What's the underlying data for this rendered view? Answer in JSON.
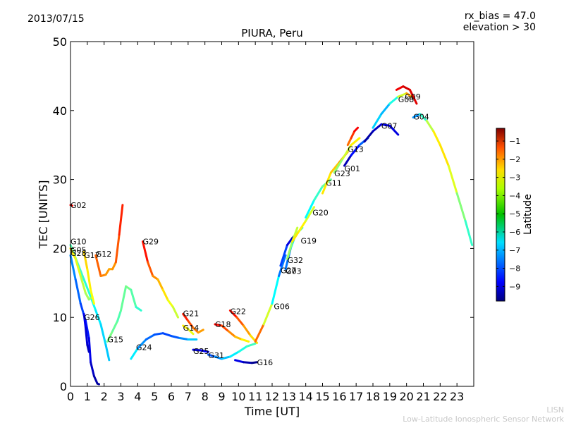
{
  "header": {
    "date": "2013/07/15",
    "rx_bias": "rx_bias = 47.0",
    "elevation": "elevation > 30",
    "title": "PIURA, Peru"
  },
  "credits": {
    "line1": "LISN",
    "line2": "Low-Latitude Ionospheric Sensor Network"
  },
  "chart_data": {
    "type": "scatter",
    "title": "PIURA, Peru",
    "xlabel": "Time [UT]",
    "ylabel": "TEC [UNITS]",
    "xlim": [
      0,
      24
    ],
    "ylim": [
      0,
      50
    ],
    "xticks": [
      0,
      1,
      2,
      3,
      4,
      5,
      6,
      7,
      8,
      9,
      10,
      11,
      12,
      13,
      14,
      15,
      16,
      17,
      18,
      19,
      20,
      21,
      22,
      23
    ],
    "yticks": [
      0,
      10,
      20,
      30,
      40,
      50
    ],
    "grid": false,
    "colorbar": {
      "label": "Latitude",
      "range": [
        -9.8,
        -0.3
      ],
      "ticks": [
        -1,
        -2,
        -3,
        -4,
        -5,
        -6,
        -7,
        -8,
        -9
      ],
      "colormap": "jet"
    },
    "series": [
      {
        "name": "G02",
        "label_at": [
          0.0,
          26.3
        ],
        "points": [
          [
            0.0,
            26.3,
            -1.5
          ],
          [
            0.1,
            26.2,
            -1.6
          ]
        ]
      },
      {
        "name": "G10",
        "label_at": [
          0.0,
          21.0
        ],
        "points": [
          [
            0.0,
            20.5,
            -5.5
          ],
          [
            0.4,
            18.0,
            -5.6
          ],
          [
            0.8,
            15.5,
            -5.8
          ],
          [
            1.2,
            13.0,
            -6.0
          ],
          [
            1.5,
            11.0,
            -6.3
          ],
          [
            1.8,
            9.0,
            -6.5
          ],
          [
            2.1,
            6.0,
            -6.7
          ],
          [
            2.3,
            3.8,
            -6.8
          ]
        ]
      },
      {
        "name": "G05",
        "label_at": [
          0.0,
          19.8
        ],
        "points": [
          [
            0.0,
            20.0,
            -3.6
          ],
          [
            0.3,
            18.5,
            -3.9
          ],
          [
            0.6,
            16.0,
            -4.3
          ],
          [
            0.9,
            13.5,
            -4.6
          ],
          [
            1.1,
            12.6,
            -4.8
          ],
          [
            1.3,
            13.0,
            -5.0
          ]
        ]
      },
      {
        "name": "G28",
        "label_at": [
          0.0,
          19.3
        ],
        "points": [
          [
            0.0,
            19.0,
            -7.2
          ],
          [
            0.3,
            15.5,
            -7.5
          ],
          [
            0.6,
            12.0,
            -7.8
          ],
          [
            0.9,
            9.5,
            -8.2
          ],
          [
            1.1,
            7.0,
            -8.6
          ],
          [
            1.2,
            3.5,
            -9.0
          ],
          [
            1.4,
            1.5,
            -9.3
          ],
          [
            1.6,
            0.4,
            -9.5
          ],
          [
            1.7,
            0.3,
            -9.6
          ]
        ]
      },
      {
        "name": "G17",
        "label_at": [
          0.8,
          19.0
        ],
        "points": [
          [
            0.8,
            19.5,
            -3.4
          ],
          [
            1.0,
            17.0,
            -3.6
          ],
          [
            1.2,
            14.0,
            -3.8
          ],
          [
            1.4,
            12.0,
            -4.0
          ]
        ]
      },
      {
        "name": "G12",
        "label_at": [
          1.5,
          19.2
        ],
        "points": [
          [
            1.5,
            19.0,
            -2.2
          ],
          [
            1.8,
            16.0,
            -2.6
          ],
          [
            2.1,
            16.2,
            -2.8
          ],
          [
            2.3,
            17.0,
            -3.0
          ],
          [
            2.5,
            17.0,
            -3.1
          ],
          [
            2.7,
            18.0,
            -2.6
          ],
          [
            2.9,
            22.0,
            -2.0
          ],
          [
            3.1,
            26.3,
            -1.6
          ]
        ]
      },
      {
        "name": "G26",
        "label_at": [
          0.8,
          10.0
        ],
        "points": [
          [
            0.8,
            10.5,
            -8.6
          ],
          [
            0.9,
            8.5,
            -8.9
          ],
          [
            1.0,
            6.0,
            -9.1
          ],
          [
            1.1,
            5.0,
            -9.3
          ]
        ]
      },
      {
        "name": "G15",
        "label_at": [
          2.2,
          6.8
        ],
        "points": [
          [
            2.2,
            6.5,
            -5.0
          ],
          [
            2.5,
            8.0,
            -5.2
          ],
          [
            2.8,
            9.5,
            -5.4
          ],
          [
            3.0,
            11.0,
            -5.6
          ],
          [
            3.3,
            14.5,
            -5.0
          ],
          [
            3.6,
            14.0,
            -5.3
          ],
          [
            3.9,
            11.5,
            -5.6
          ],
          [
            4.2,
            11.0,
            -6.0
          ]
        ]
      },
      {
        "name": "G24",
        "label_at": [
          3.9,
          5.7
        ],
        "points": [
          [
            3.6,
            4.0,
            -5.8
          ],
          [
            4.0,
            5.5,
            -7.0
          ],
          [
            4.5,
            6.8,
            -7.5
          ],
          [
            5.0,
            7.5,
            -7.8
          ],
          [
            5.5,
            7.7,
            -7.9
          ],
          [
            6.0,
            7.3,
            -8.0
          ],
          [
            6.5,
            7.0,
            -7.6
          ],
          [
            7.0,
            6.8,
            -7.0
          ],
          [
            7.5,
            6.8,
            -6.5
          ]
        ]
      },
      {
        "name": "G29",
        "label_at": [
          4.3,
          21.0
        ],
        "points": [
          [
            4.3,
            21.0,
            -1.3
          ],
          [
            4.6,
            18.0,
            -2.0
          ],
          [
            4.9,
            16.0,
            -2.6
          ],
          [
            5.2,
            15.5,
            -3.0
          ],
          [
            5.5,
            14.0,
            -3.4
          ],
          [
            5.8,
            12.5,
            -3.8
          ],
          [
            6.1,
            11.5,
            -4.2
          ],
          [
            6.4,
            10.0,
            -4.5
          ]
        ]
      },
      {
        "name": "G21",
        "label_at": [
          6.7,
          10.6
        ],
        "points": [
          [
            6.7,
            10.5,
            -1.5
          ],
          [
            7.0,
            9.5,
            -2.0
          ],
          [
            7.3,
            8.5,
            -2.4
          ],
          [
            7.6,
            7.8,
            -2.8
          ],
          [
            7.9,
            8.2,
            -3.1
          ]
        ]
      },
      {
        "name": "G14",
        "label_at": [
          6.7,
          8.5
        ],
        "points": [
          [
            6.7,
            8.8,
            -3.6
          ],
          [
            7.0,
            8.3,
            -3.9
          ],
          [
            7.3,
            7.6,
            -4.2
          ]
        ]
      },
      {
        "name": "G25",
        "label_at": [
          7.3,
          5.1
        ],
        "points": [
          [
            7.3,
            5.3,
            -9.0
          ],
          [
            7.8,
            5.2,
            -8.9
          ],
          [
            8.2,
            5.0,
            -8.6
          ]
        ]
      },
      {
        "name": "G18",
        "label_at": [
          8.6,
          9.0
        ],
        "points": [
          [
            8.6,
            9.0,
            -1.3
          ],
          [
            9.0,
            8.8,
            -1.8
          ],
          [
            9.4,
            8.0,
            -2.5
          ],
          [
            9.8,
            7.2,
            -3.0
          ],
          [
            10.2,
            6.8,
            -3.5
          ],
          [
            10.6,
            6.5,
            -4.0
          ]
        ]
      },
      {
        "name": "G31",
        "label_at": [
          8.2,
          4.5
        ],
        "points": [
          [
            8.2,
            4.6,
            -8.0
          ],
          [
            8.6,
            4.3,
            -7.6
          ],
          [
            9.0,
            4.0,
            -7.0
          ],
          [
            9.5,
            4.3,
            -6.6
          ],
          [
            10.0,
            5.0,
            -6.2
          ],
          [
            10.5,
            5.8,
            -5.8
          ],
          [
            11.0,
            6.2,
            -5.5
          ]
        ]
      },
      {
        "name": "G22",
        "label_at": [
          9.5,
          10.9
        ],
        "points": [
          [
            9.5,
            11.0,
            -1.3
          ],
          [
            9.9,
            10.0,
            -2.0
          ],
          [
            10.3,
            8.8,
            -2.6
          ],
          [
            10.7,
            7.4,
            -3.3
          ],
          [
            11.1,
            6.3,
            -3.8
          ]
        ]
      },
      {
        "name": "G16",
        "label_at": [
          11.1,
          3.5
        ],
        "points": [
          [
            9.8,
            3.8,
            -8.5
          ],
          [
            10.3,
            3.5,
            -9.2
          ],
          [
            10.8,
            3.4,
            -9.5
          ],
          [
            11.1,
            3.5,
            -9.8
          ]
        ]
      },
      {
        "name": "G06",
        "label_at": [
          12.1,
          11.6
        ],
        "points": [
          [
            11.0,
            6.5,
            -2.0
          ],
          [
            11.5,
            9.0,
            -3.0
          ],
          [
            12.0,
            12.0,
            -5.5
          ],
          [
            12.4,
            16.0,
            -7.0
          ],
          [
            12.8,
            19.0,
            -8.0
          ]
        ]
      },
      {
        "name": "G27",
        "label_at": [
          12.5,
          16.8
        ],
        "points": [
          [
            12.5,
            17.5,
            -7.5
          ],
          [
            12.9,
            20.5,
            -8.5
          ],
          [
            13.2,
            21.5,
            -9.3
          ],
          [
            13.4,
            22.0,
            -9.6
          ]
        ]
      },
      {
        "name": "G03",
        "label_at": [
          12.8,
          16.7
        ],
        "points": [
          [
            12.8,
            17.0,
            -8.0
          ],
          [
            13.1,
            20.0,
            -7.0
          ],
          [
            13.4,
            22.0,
            -6.0
          ],
          [
            13.8,
            23.0,
            -5.0
          ]
        ]
      },
      {
        "name": "G32",
        "label_at": [
          12.9,
          18.3
        ],
        "points": [
          [
            12.9,
            18.5,
            -5.0
          ],
          [
            13.2,
            21.0,
            -4.6
          ],
          [
            13.5,
            23.0,
            -4.2
          ]
        ]
      },
      {
        "name": "G19",
        "label_at": [
          13.7,
          21.1
        ],
        "points": [
          [
            13.2,
            21.0,
            -3.8
          ],
          [
            13.6,
            22.5,
            -3.5
          ],
          [
            14.0,
            24.0,
            -4.0
          ],
          [
            14.5,
            26.0,
            -4.5
          ]
        ]
      },
      {
        "name": "G20",
        "label_at": [
          14.4,
          25.2
        ],
        "points": [
          [
            14.0,
            24.5,
            -6.5
          ],
          [
            14.5,
            27.0,
            -6.0
          ],
          [
            15.0,
            29.0,
            -5.5
          ],
          [
            15.5,
            30.0,
            -5.0
          ]
        ]
      },
      {
        "name": "G11",
        "label_at": [
          15.2,
          29.5
        ],
        "points": [
          [
            15.0,
            28.0,
            -3.8
          ],
          [
            15.5,
            31.0,
            -3.5
          ],
          [
            16.0,
            32.5,
            -3.2
          ],
          [
            16.5,
            34.0,
            -2.8
          ]
        ]
      },
      {
        "name": "G23",
        "label_at": [
          15.7,
          30.9
        ],
        "points": [
          [
            15.7,
            31.0,
            -5.2
          ],
          [
            16.2,
            33.0,
            -4.6
          ],
          [
            16.7,
            35.0,
            -4.0
          ],
          [
            17.2,
            36.0,
            -3.5
          ]
        ]
      },
      {
        "name": "G01",
        "label_at": [
          16.3,
          31.6
        ],
        "points": [
          [
            16.3,
            32.0,
            -9.6
          ],
          [
            16.7,
            33.5,
            -9.0
          ],
          [
            17.2,
            35.0,
            -8.0
          ],
          [
            17.7,
            36.0,
            -7.4
          ]
        ]
      },
      {
        "name": "G13",
        "label_at": [
          16.5,
          34.4
        ],
        "points": [
          [
            16.5,
            35.0,
            -2.8
          ],
          [
            16.7,
            36.0,
            -2.2
          ],
          [
            16.9,
            37.0,
            -1.7
          ],
          [
            17.1,
            37.5,
            -1.2
          ]
        ]
      },
      {
        "name": "G07",
        "label_at": [
          18.5,
          37.8
        ],
        "points": [
          [
            17.5,
            35.5,
            -9.6
          ],
          [
            18.0,
            37.0,
            -9.3
          ],
          [
            18.5,
            38.0,
            -9.0
          ],
          [
            19.0,
            37.8,
            -8.8
          ],
          [
            19.5,
            36.5,
            -9.0
          ]
        ]
      },
      {
        "name": "G08",
        "label_at": [
          19.5,
          41.6
        ],
        "points": [
          [
            18.0,
            37.5,
            -6.5
          ],
          [
            18.5,
            39.5,
            -6.8
          ],
          [
            19.0,
            41.0,
            -7.0
          ],
          [
            19.5,
            42.0,
            -5.0
          ],
          [
            20.0,
            42.5,
            -3.5
          ],
          [
            20.3,
            42.0,
            -2.5
          ]
        ]
      },
      {
        "name": "G09",
        "label_at": [
          19.9,
          42.0
        ],
        "points": [
          [
            19.4,
            43.0,
            -1.5
          ],
          [
            19.8,
            43.5,
            -1.2
          ],
          [
            20.2,
            43.0,
            -1.0
          ],
          [
            20.6,
            41.0,
            -1.4
          ]
        ]
      },
      {
        "name": "G04",
        "label_at": [
          20.4,
          39.1
        ],
        "points": [
          [
            20.4,
            39.0,
            -8.0
          ],
          [
            20.8,
            39.5,
            -6.5
          ],
          [
            21.2,
            38.5,
            -5.0
          ],
          [
            21.6,
            37.0,
            -4.0
          ],
          [
            22.0,
            35.0,
            -3.4
          ],
          [
            22.5,
            32.0,
            -3.8
          ],
          [
            23.0,
            28.0,
            -4.5
          ],
          [
            23.5,
            24.0,
            -5.5
          ],
          [
            23.9,
            20.5,
            -6.0
          ]
        ]
      }
    ]
  }
}
